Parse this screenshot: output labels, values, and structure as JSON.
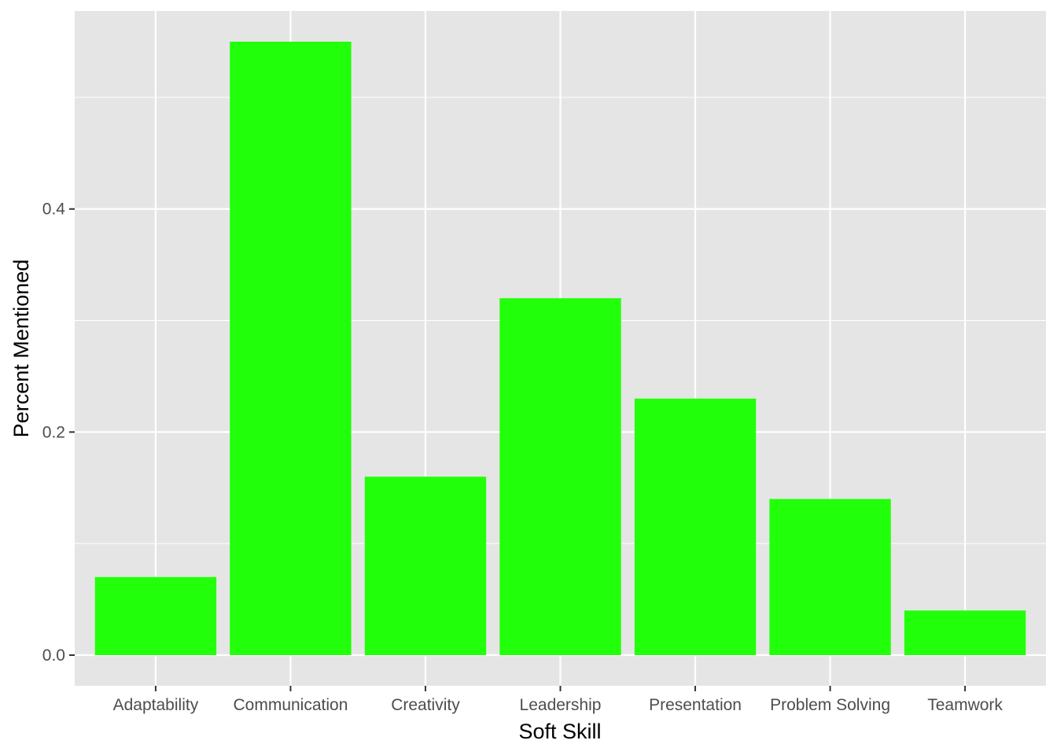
{
  "chart_data": {
    "type": "bar",
    "title": "",
    "xlabel": "Soft Skill",
    "ylabel": "Percent Mentioned",
    "categories": [
      "Adaptability",
      "Communication",
      "Creativity",
      "Leadership",
      "Presentation",
      "Problem Solving",
      "Teamwork"
    ],
    "values": [
      0.07,
      0.55,
      0.16,
      0.32,
      0.23,
      0.14,
      0.04
    ],
    "ylim": [
      -0.0275,
      0.5775
    ],
    "yticks": [
      0.0,
      0.2,
      0.4
    ],
    "ytick_labels": [
      "0.0",
      "0.2",
      "0.4"
    ],
    "grid": true,
    "legend": "none",
    "colors": {
      "bar": "#22ff0a",
      "panel": "#e5e5e5",
      "grid": "#ffffff",
      "tick": "#333333"
    }
  }
}
